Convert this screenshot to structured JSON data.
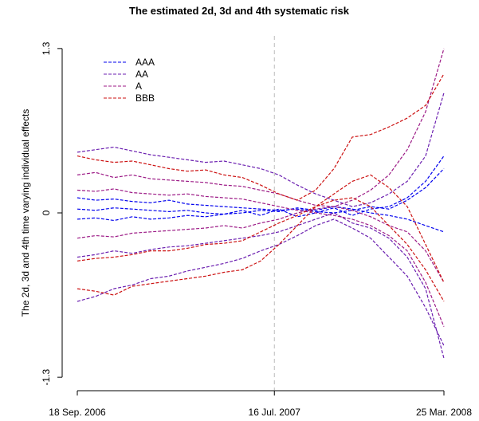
{
  "chart_data": {
    "type": "line",
    "title": "The estimated 2d, 3d and 4th  systematic risk",
    "y_label": "The 2d, 3d and 4th  time varying individual effects",
    "x": [
      0,
      4,
      8,
      12,
      16,
      20,
      24,
      28,
      32,
      36,
      40,
      44,
      48,
      52,
      56,
      60,
      64,
      68,
      72,
      76,
      80
    ],
    "xlim": [
      0,
      80
    ],
    "xticks": [
      {
        "value": 0,
        "label": "18 Sep. 2006"
      },
      {
        "value": 43,
        "label": "16 Jul. 2007"
      },
      {
        "value": 80,
        "label": "25 Mar. 2008"
      }
    ],
    "ylim": [
      -1.4,
      1.4
    ],
    "yticks": [
      -1.3,
      0,
      1.3
    ],
    "series": [
      {
        "name": "AAA",
        "color": "#0000ee",
        "values": [
          [
            0.12,
            0.1,
            0.11,
            0.09,
            0.08,
            0.1,
            0.07,
            0.06,
            0.05,
            0.04,
            0.03,
            0.02,
            0.03,
            0.01,
            0.0,
            0.02,
            0.05,
            0.03,
            0.1,
            0.2,
            0.35
          ],
          [
            -0.05,
            -0.04,
            -0.06,
            -0.03,
            -0.05,
            -0.04,
            -0.02,
            -0.03,
            -0.01,
            0.0,
            0.02,
            0.01,
            0.04,
            0.02,
            0.05,
            0.03,
            0.0,
            -0.02,
            -0.05,
            -0.1,
            -0.15
          ],
          [
            0.03,
            0.02,
            0.04,
            0.03,
            0.02,
            0.01,
            0.02,
            0.0,
            -0.01,
            0.02,
            -0.02,
            0.03,
            -0.03,
            0.0,
            0.04,
            -0.02,
            0.03,
            0.05,
            0.12,
            0.25,
            0.45
          ]
        ]
      },
      {
        "name": "AA",
        "color": "#6b1fb0",
        "values": [
          [
            0.48,
            0.5,
            0.52,
            0.49,
            0.46,
            0.44,
            0.42,
            0.4,
            0.41,
            0.38,
            0.35,
            0.3,
            0.22,
            0.15,
            0.1,
            0.05,
            0.08,
            0.15,
            0.25,
            0.45,
            0.95
          ],
          [
            -0.35,
            -0.33,
            -0.3,
            -0.32,
            -0.29,
            -0.27,
            -0.26,
            -0.24,
            -0.22,
            -0.2,
            -0.18,
            -0.15,
            -0.1,
            -0.05,
            0.0,
            -0.08,
            -0.12,
            -0.2,
            -0.35,
            -0.6,
            -1.15
          ],
          [
            -0.7,
            -0.66,
            -0.6,
            -0.57,
            -0.52,
            -0.5,
            -0.46,
            -0.43,
            -0.4,
            -0.36,
            -0.3,
            -0.25,
            -0.18,
            -0.1,
            -0.05,
            -0.12,
            -0.2,
            -0.35,
            -0.5,
            -0.75,
            -1.05
          ]
        ]
      },
      {
        "name": "A",
        "color": "#9c1a86",
        "values": [
          [
            0.3,
            0.32,
            0.28,
            0.3,
            0.27,
            0.26,
            0.25,
            0.24,
            0.22,
            0.21,
            0.18,
            0.15,
            0.1,
            0.06,
            0.05,
            0.1,
            0.18,
            0.3,
            0.5,
            0.8,
            1.3
          ],
          [
            0.18,
            0.17,
            0.19,
            0.16,
            0.15,
            0.14,
            0.15,
            0.13,
            0.12,
            0.11,
            0.08,
            0.05,
            0.02,
            0.0,
            -0.02,
            -0.05,
            -0.1,
            -0.18,
            -0.3,
            -0.55,
            -0.9
          ],
          [
            -0.2,
            -0.18,
            -0.19,
            -0.16,
            -0.15,
            -0.14,
            -0.13,
            -0.12,
            -0.1,
            -0.12,
            -0.08,
            -0.05,
            0.0,
            0.03,
            0.05,
            0.02,
            -0.03,
            -0.1,
            -0.15,
            -0.3,
            -0.55
          ]
        ]
      },
      {
        "name": "BBB",
        "color": "#cc1111",
        "values": [
          [
            0.45,
            0.42,
            0.4,
            0.41,
            0.38,
            0.35,
            0.33,
            0.34,
            0.3,
            0.28,
            0.22,
            0.15,
            0.1,
            0.18,
            0.35,
            0.6,
            0.62,
            0.68,
            0.75,
            0.85,
            1.1
          ],
          [
            -0.38,
            -0.36,
            -0.35,
            -0.33,
            -0.3,
            -0.3,
            -0.28,
            -0.25,
            -0.24,
            -0.22,
            -0.15,
            -0.08,
            -0.02,
            0.05,
            0.1,
            0.12,
            0.05,
            -0.1,
            -0.25,
            -0.45,
            -0.7
          ],
          [
            -0.6,
            -0.62,
            -0.65,
            -0.58,
            -0.56,
            -0.54,
            -0.52,
            -0.5,
            -0.47,
            -0.45,
            -0.38,
            -0.25,
            -0.1,
            0.05,
            0.15,
            0.25,
            0.3,
            0.2,
            0.05,
            -0.25,
            -0.55
          ]
        ]
      }
    ]
  }
}
